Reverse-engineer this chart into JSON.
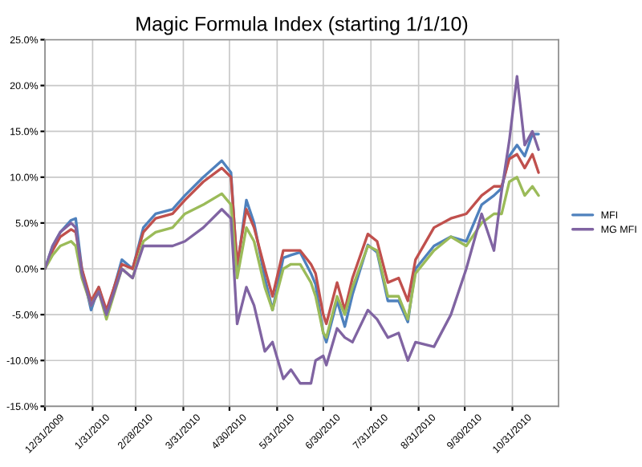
{
  "chart_data": {
    "type": "line",
    "title": "Magic Formula Index (starting 1/1/10)",
    "x": [
      "2009-12-31",
      "2010-01-05",
      "2010-01-10",
      "2010-01-17",
      "2010-01-20",
      "2010-01-24",
      "2010-01-30",
      "2010-02-04",
      "2010-02-09",
      "2010-02-19",
      "2010-02-26",
      "2010-03-05",
      "2010-03-13",
      "2010-03-24",
      "2010-04-01",
      "2010-04-13",
      "2010-04-25",
      "2010-05-01",
      "2010-05-05",
      "2010-05-11",
      "2010-05-16",
      "2010-05-23",
      "2010-05-28",
      "2010-06-04",
      "2010-06-09",
      "2010-06-15",
      "2010-06-22",
      "2010-06-25",
      "2010-06-30",
      "2010-07-02",
      "2010-07-09",
      "2010-07-14",
      "2010-07-19",
      "2010-07-29",
      "2010-08-04",
      "2010-08-11",
      "2010-08-18",
      "2010-08-24",
      "2010-08-29",
      "2010-09-10",
      "2010-09-21",
      "2010-10-01",
      "2010-10-11",
      "2010-10-19",
      "2010-10-24",
      "2010-10-29",
      "2010-11-03",
      "2010-11-08",
      "2010-11-13",
      "2010-11-17"
    ],
    "series": [
      {
        "name": "MFI",
        "color": "#4f81bd",
        "values": [
          0,
          2.5,
          4,
          5.3,
          5.5,
          0,
          -4.5,
          -2,
          -5,
          1,
          0,
          4.5,
          6,
          6.5,
          8,
          10,
          11.8,
          10.5,
          0,
          7.5,
          5,
          -1,
          -4.5,
          1.2,
          1.5,
          1.8,
          -0.5,
          -1.7,
          -7,
          -8,
          -3.5,
          -6.3,
          -2.8,
          2.6,
          1.8,
          -3.5,
          -3.5,
          -5.8,
          0,
          2.5,
          3.5,
          3,
          7,
          8,
          8.8,
          12.3,
          13.5,
          12.3,
          14.7,
          14.7
        ]
      },
      {
        "color": "#c0504d",
        "values": [
          0,
          2,
          3.5,
          4.3,
          4,
          0,
          -3.5,
          -2,
          -4.5,
          0.5,
          0,
          4,
          5.5,
          6,
          7.5,
          9.5,
          11,
          10,
          0.5,
          6.5,
          4.5,
          0,
          -3,
          2,
          2,
          2,
          0.5,
          -0.5,
          -5,
          -6,
          -1.5,
          -4.5,
          -1,
          3.8,
          3,
          -1.5,
          -1,
          -3.5,
          1,
          4.5,
          5.5,
          6,
          8,
          9,
          9,
          12,
          12.5,
          11,
          12.5,
          10.5
        ]
      },
      {
        "color": "#9bbb59",
        "values": [
          0,
          1.5,
          2.5,
          3,
          2.5,
          -1,
          -4,
          -2.5,
          -5.5,
          0,
          -1,
          3,
          4,
          4.5,
          6,
          7,
          8.2,
          7,
          -1,
          4.5,
          3,
          -2,
          -4.5,
          0,
          0.5,
          0.5,
          -1.5,
          -3,
          -7,
          -7.5,
          -3,
          -5,
          -2,
          2.5,
          2,
          -3,
          -3,
          -5.5,
          -0.5,
          2,
          3.5,
          2.5,
          5,
          6,
          6,
          9.5,
          10,
          8,
          9,
          8
        ]
      },
      {
        "name": "MG MFI",
        "color": "#8064a2",
        "values": [
          0,
          2.5,
          4,
          5,
          4.5,
          -0.5,
          -4,
          -2.5,
          -5,
          0,
          -1,
          2.5,
          2.5,
          2.5,
          3,
          4.5,
          6.5,
          5.5,
          -6,
          -2,
          -4,
          -9,
          -8,
          -12,
          -11,
          -12.5,
          -12.5,
          -10,
          -9.5,
          -10.5,
          -6.5,
          -7.5,
          -8,
          -4.5,
          -5.5,
          -7.5,
          -7,
          -10,
          -8,
          -8.5,
          -5,
          0,
          6,
          2,
          8.5,
          14,
          21,
          13.5,
          15,
          13
        ]
      }
    ],
    "xlim": [
      "2009-12-31",
      "2010-11-30"
    ],
    "xticks": [
      {
        "value": "2009-12-31",
        "label": "12/31/2009"
      },
      {
        "value": "2010-01-31",
        "label": "1/31/2010"
      },
      {
        "value": "2010-02-28",
        "label": "2/28/2010"
      },
      {
        "value": "2010-03-31",
        "label": "3/31/2010"
      },
      {
        "value": "2010-04-30",
        "label": "4/30/2010"
      },
      {
        "value": "2010-05-31",
        "label": "5/31/2010"
      },
      {
        "value": "2010-06-30",
        "label": "6/30/2010"
      },
      {
        "value": "2010-07-31",
        "label": "7/31/2010"
      },
      {
        "value": "2010-08-31",
        "label": "8/31/2010"
      },
      {
        "value": "2010-09-30",
        "label": "9/30/2010"
      },
      {
        "value": "2010-10-31",
        "label": "10/31/2010"
      }
    ],
    "ylim": [
      -15,
      25
    ],
    "yticks": [
      {
        "value": -15,
        "label": "-15.0%"
      },
      {
        "value": -10,
        "label": "-10.0%"
      },
      {
        "value": -5,
        "label": "-5.0%"
      },
      {
        "value": 0,
        "label": "0.0%"
      },
      {
        "value": 5,
        "label": "5.0%"
      },
      {
        "value": 10,
        "label": "10.0%"
      },
      {
        "value": 15,
        "label": "15.0%"
      },
      {
        "value": 20,
        "label": "20.0%"
      },
      {
        "value": 25,
        "label": "25.0%"
      }
    ],
    "grid": true,
    "legend": "right"
  }
}
